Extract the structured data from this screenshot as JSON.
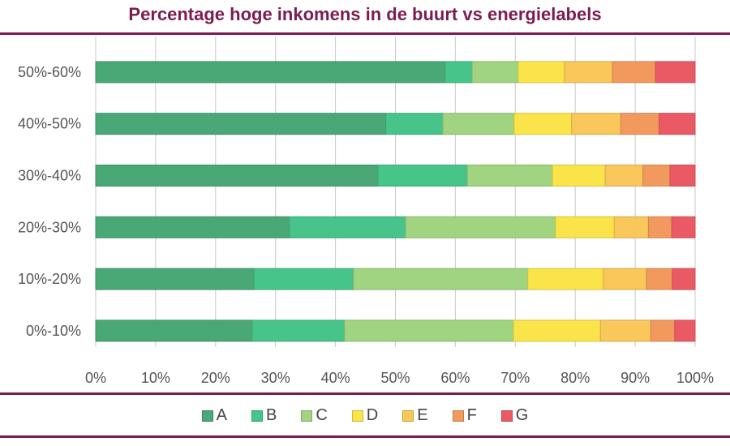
{
  "chart_data": {
    "type": "bar",
    "orientation": "horizontal",
    "stacked": true,
    "title": "Percentage hoge inkomens in de buurt vs energielabels",
    "categories": [
      "50%-60%",
      "40%-50%",
      "30%-40%",
      "20%-30%",
      "10%-20%",
      "0%-10%"
    ],
    "series": [
      {
        "name": "A",
        "color": "#4aa877",
        "values": [
          58.3,
          48.4,
          47.1,
          32.3,
          26.4,
          26.1
        ]
      },
      {
        "name": "B",
        "color": "#47c489",
        "values": [
          4.5,
          9.5,
          14.9,
          19.4,
          16.6,
          15.4
        ]
      },
      {
        "name": "C",
        "color": "#a0d480",
        "values": [
          7.7,
          11.9,
          14.2,
          25.0,
          29.1,
          28.2
        ]
      },
      {
        "name": "D",
        "color": "#fbe44a",
        "values": [
          7.7,
          9.6,
          8.8,
          9.8,
          12.6,
          14.5
        ]
      },
      {
        "name": "E",
        "color": "#f9c75a",
        "values": [
          8.0,
          8.2,
          6.3,
          5.7,
          7.2,
          8.4
        ]
      },
      {
        "name": "F",
        "color": "#f29a5e",
        "values": [
          7.2,
          6.4,
          4.5,
          3.9,
          4.3,
          4.0
        ]
      },
      {
        "name": "G",
        "color": "#ea5a64",
        "values": [
          6.6,
          6.0,
          4.2,
          3.9,
          3.8,
          3.4
        ]
      }
    ],
    "xticks": [
      "0%",
      "10%",
      "20%",
      "30%",
      "40%",
      "50%",
      "60%",
      "70%",
      "80%",
      "90%",
      "100%"
    ],
    "xlim": [
      0,
      100
    ],
    "grid": true,
    "legend": "bottom"
  }
}
